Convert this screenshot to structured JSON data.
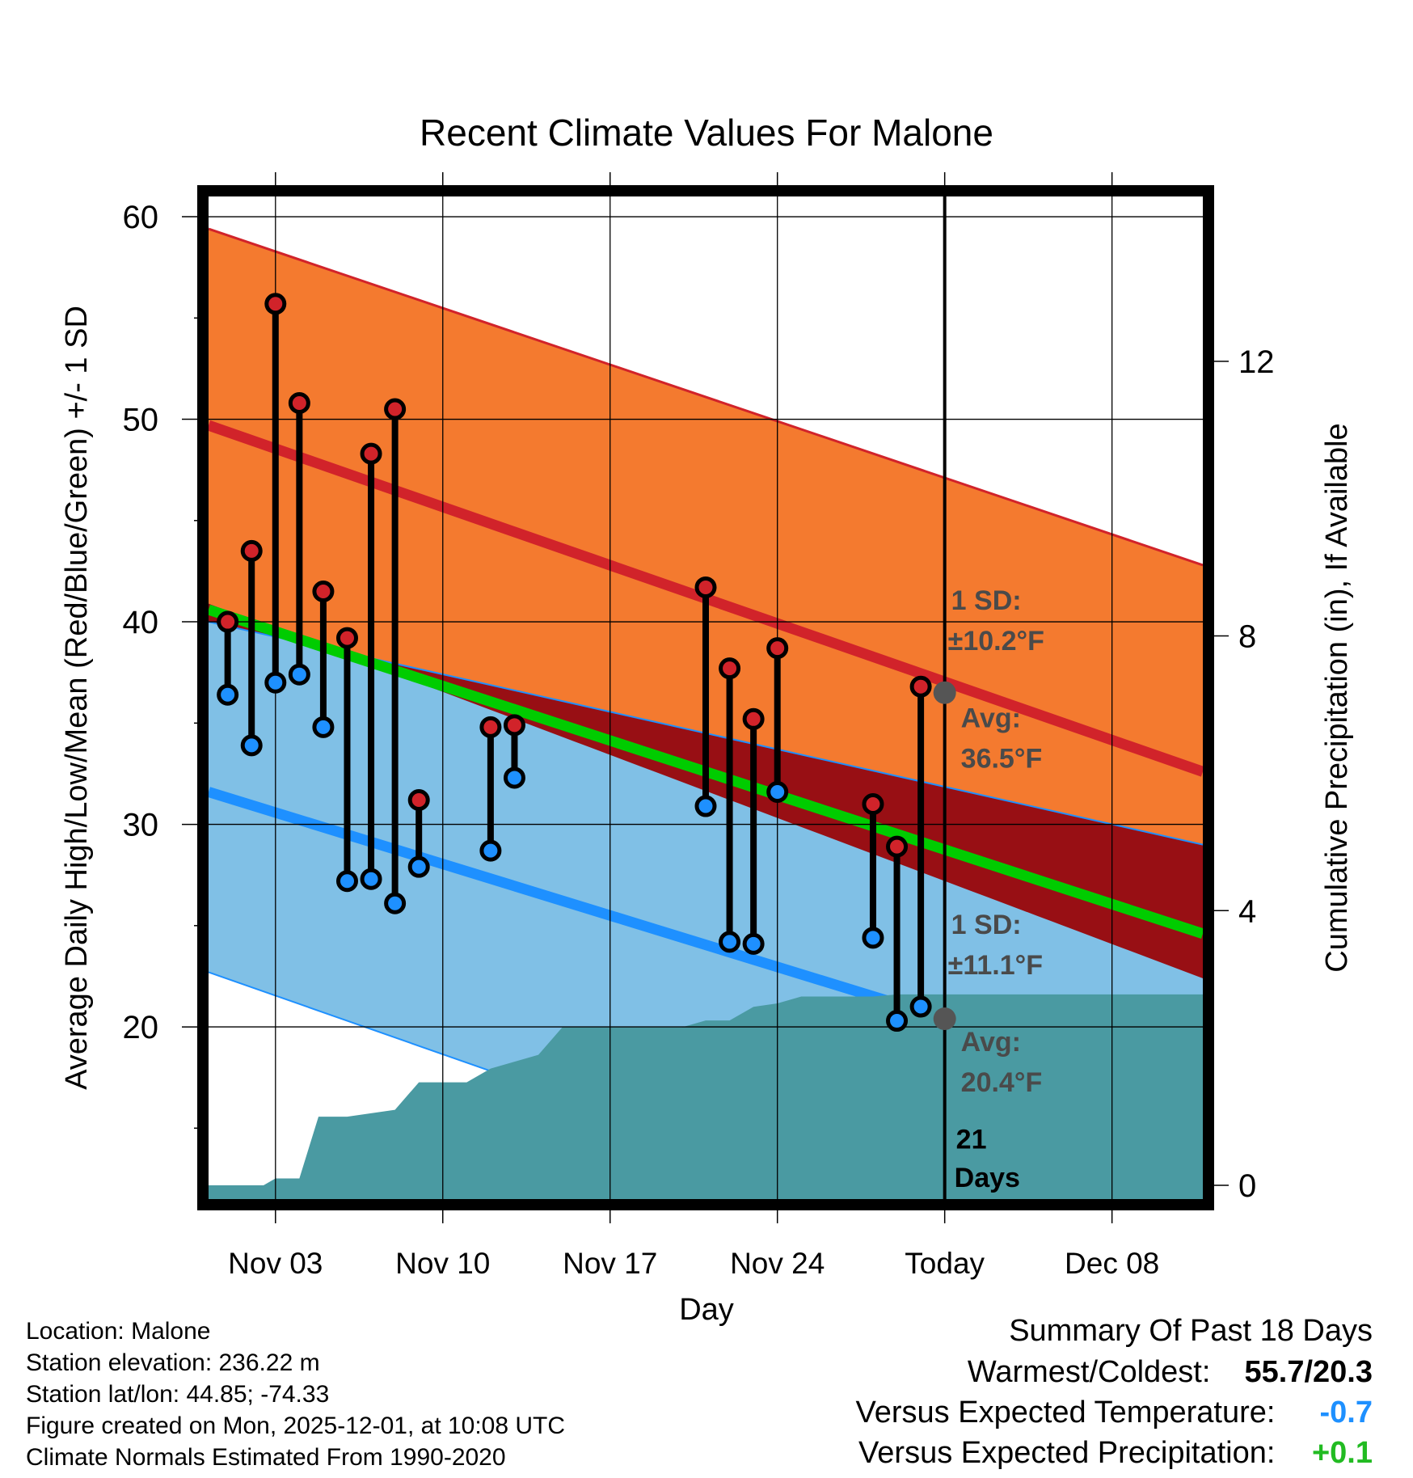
{
  "chart_data": {
    "type": "line",
    "title": "Recent Climate Values For Malone",
    "xlabel": "Day",
    "ylabel": "Average Daily High/Low/Mean (Red/Blue/Green) +/- 1 SD",
    "y2label": "Cumulative Precipitation (in), If Available",
    "xlim": [
      0.2,
      41.8
    ],
    "ylim": [
      11.5,
      61
    ],
    "y2lim": [
      -0.2,
      14.4
    ],
    "x_ticks": [
      {
        "x": 3,
        "label": "Nov 03"
      },
      {
        "x": 10,
        "label": "Nov 10"
      },
      {
        "x": 17,
        "label": "Nov 17"
      },
      {
        "x": 24,
        "label": "Nov 24"
      },
      {
        "x": 31,
        "label": "Today"
      },
      {
        "x": 38,
        "label": "Dec 08"
      }
    ],
    "y_ticks": [
      20,
      30,
      40,
      50,
      60
    ],
    "y2_ticks": [
      0,
      4,
      8,
      12
    ],
    "normals": {
      "high_upper": {
        "start": 59.4,
        "end": 42.8
      },
      "high_mean": {
        "start": 49.7,
        "end": 32.6
      },
      "high_lower": {
        "start": 40.9,
        "end": 22.4
      },
      "mean": {
        "start": 40.6,
        "end": 24.6
      },
      "low_upper": {
        "start": 40.0,
        "end": 29.0
      },
      "low_mean": {
        "start": 31.6,
        "end": 16.5
      },
      "low_lower": {
        "start": 22.7,
        "end": 5.5
      }
    },
    "observations": [
      {
        "day": 1,
        "high": 40.0,
        "low": 36.4
      },
      {
        "day": 2,
        "high": 43.5,
        "low": 33.9
      },
      {
        "day": 3,
        "high": 55.7,
        "low": 37.0
      },
      {
        "day": 4,
        "high": 50.8,
        "low": 37.4
      },
      {
        "day": 5,
        "high": 41.5,
        "low": 34.8
      },
      {
        "day": 6,
        "high": 39.2,
        "low": 27.2
      },
      {
        "day": 7,
        "high": 48.3,
        "low": 27.3
      },
      {
        "day": 8,
        "high": 50.5,
        "low": 26.1
      },
      {
        "day": 9,
        "high": 31.2,
        "low": 27.9
      },
      {
        "day": 12,
        "high": 34.8,
        "low": 28.7
      },
      {
        "day": 13,
        "high": 34.9,
        "low": 32.3
      },
      {
        "day": 21,
        "high": 41.7,
        "low": 30.9
      },
      {
        "day": 22,
        "high": 37.7,
        "low": 24.2
      },
      {
        "day": 23,
        "high": 35.2,
        "low": 24.1
      },
      {
        "day": 24,
        "high": 38.7,
        "low": 31.6
      },
      {
        "day": 28,
        "high": 31.0,
        "low": 24.4
      },
      {
        "day": 29,
        "high": 28.9,
        "low": 20.3
      },
      {
        "day": 30,
        "high": 36.8,
        "low": 21.0
      }
    ],
    "precip_cumulative": [
      [
        0.2,
        0
      ],
      [
        2.5,
        0
      ],
      [
        3.0,
        0.1
      ],
      [
        4.0,
        0.1
      ],
      [
        4.8,
        1.0
      ],
      [
        6.0,
        1.0
      ],
      [
        8.0,
        1.1
      ],
      [
        9.0,
        1.5
      ],
      [
        11.0,
        1.5
      ],
      [
        12.0,
        1.7
      ],
      [
        13.0,
        1.8
      ],
      [
        14.0,
        1.9
      ],
      [
        15.0,
        2.3
      ],
      [
        20.0,
        2.3
      ],
      [
        21.0,
        2.4
      ],
      [
        22.0,
        2.4
      ],
      [
        23.0,
        2.6
      ],
      [
        24.0,
        2.65
      ],
      [
        25.0,
        2.75
      ],
      [
        28.0,
        2.75
      ],
      [
        29.0,
        2.78
      ],
      [
        41.8,
        2.78
      ]
    ],
    "today_x": 31,
    "today_markers": {
      "high_avg": 36.5,
      "low_avg": 20.4
    },
    "annotations": {
      "high_sd": {
        "line1": "1 SD:",
        "line2": "±10.2°F"
      },
      "high_avg": {
        "line1": "Avg:",
        "line2": "36.5°F"
      },
      "low_sd": {
        "line1": "1 SD:",
        "line2": "±11.1°F"
      },
      "low_avg": {
        "line1": "Avg:",
        "line2": "20.4°F"
      },
      "days": {
        "line1": "21",
        "line2": "Days"
      }
    },
    "colors": {
      "high_band": "#f47a2f",
      "high_line": "#d1232a",
      "low_band": "#80c0e6",
      "low_line": "#1e90ff",
      "overlap": "#980f14",
      "mean_line": "#00cc00",
      "precip": "#4a9aa2",
      "high_marker": "#d1232a",
      "low_marker": "#1e90ff",
      "annotation": "#4a4a4a"
    }
  },
  "footer": {
    "location": "Location: Malone",
    "elevation": "Station elevation: 236.22 m",
    "latlon": "Station lat/lon: 44.85; -74.33",
    "created": "Figure created on Mon, 2025-12-01, at 10:08 UTC",
    "normals": "Climate Normals Estimated From 1990-2020"
  },
  "summary": {
    "title": "Summary Of Past 18 Days",
    "warmest_label": "Warmest/Coldest:",
    "warmest_value": "55.7/20.3",
    "temp_label": "Versus Expected Temperature:",
    "temp_value": "-0.7",
    "temp_color": "#1e90ff",
    "precip_label": "Versus Expected Precipitation:",
    "precip_value": "+0.1",
    "precip_color": "#22bb22"
  }
}
